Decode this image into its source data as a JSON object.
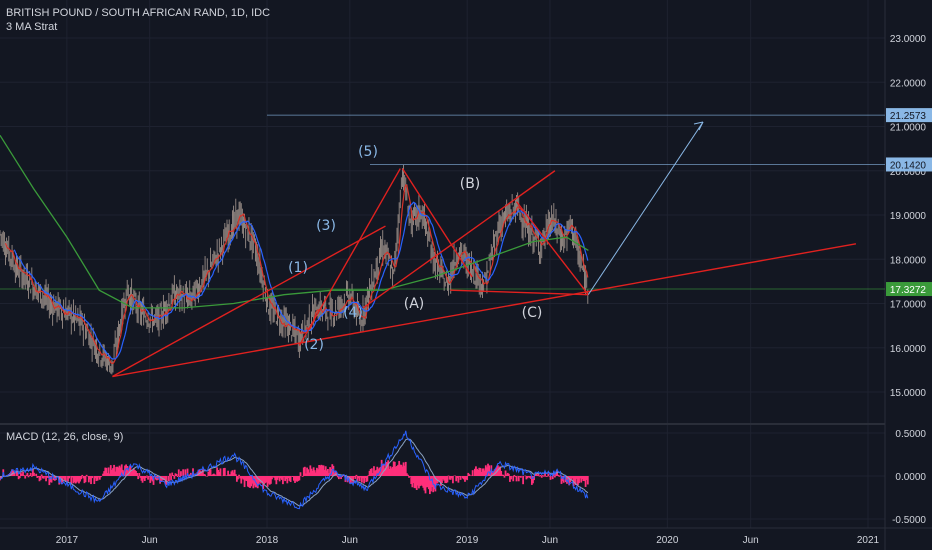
{
  "header": {
    "symbol": "BRITISH POUND / SOUTH AFRICAN RAND, 1D, IDC",
    "indicator": "3 MA Strat"
  },
  "macd_label": "MACD (12, 26, close, 9)",
  "colors": {
    "background": "#131722",
    "grid": "#1e2230",
    "trendline": "#e0211f",
    "projection": "#8ab8e6",
    "price": "#9a8e88",
    "ma_fast": "#d8342a",
    "ma_mid": "#2962ff",
    "ma_slow": "#3a9a3a",
    "macd_hist": "#ff2f7a",
    "macd_line": "#2962ff",
    "signal_line": "#8aa2c2"
  },
  "chart_data": [
    {
      "type": "line",
      "title": "BRITISH POUND / SOUTH AFRICAN RAND, 1D, IDC",
      "y_ticks": [
        "15.0000",
        "16.0000",
        "17.0000",
        "18.0000",
        "19.0000",
        "20.0000",
        "21.0000",
        "22.0000",
        "23.0000"
      ],
      "ylim": [
        14.4,
        23.7
      ],
      "x_ticks": [
        "2017",
        "Jun",
        "2018",
        "Jun",
        "2019",
        "Jun",
        "2020",
        "Jun",
        "2021"
      ],
      "price_labels": [
        "21.2573",
        "20.1420",
        "17.3272"
      ],
      "x_start": "2016-09",
      "x_end": "2021-02",
      "series": [
        {
          "values": [
            {
              "x": "2016-09-01",
              "y": 18.6
            },
            {
              "x": "2016-10-01",
              "y": 17.8
            },
            {
              "x": "2016-11-01",
              "y": 17.4
            },
            {
              "x": "2016-12-01",
              "y": 17.0
            },
            {
              "x": "2017-01-01",
              "y": 16.8
            },
            {
              "x": "2017-02-01",
              "y": 16.5
            },
            {
              "x": "2017-03-01",
              "y": 15.9
            },
            {
              "x": "2017-03-25",
              "y": 15.6
            },
            {
              "x": "2017-04-20",
              "y": 17.3
            },
            {
              "x": "2017-05-15",
              "y": 16.8
            },
            {
              "x": "2017-06-15",
              "y": 16.6
            },
            {
              "x": "2017-07-15",
              "y": 17.2
            },
            {
              "x": "2017-08-15",
              "y": 17.1
            },
            {
              "x": "2017-09-15",
              "y": 17.7
            },
            {
              "x": "2017-10-15",
              "y": 18.4
            },
            {
              "x": "2017-11-10",
              "y": 19.0
            },
            {
              "x": "2017-12-10",
              "y": 18.3
            },
            {
              "x": "2018-01-05",
              "y": 16.9
            },
            {
              "x": "2018-02-01",
              "y": 16.6
            },
            {
              "x": "2018-03-01",
              "y": 16.2
            },
            {
              "x": "2018-04-01",
              "y": 16.9
            },
            {
              "x": "2018-05-01",
              "y": 16.8
            },
            {
              "x": "2018-06-01",
              "y": 17.2
            },
            {
              "x": "2018-06-20",
              "y": 16.6
            },
            {
              "x": "2018-07-15",
              "y": 17.6
            },
            {
              "x": "2018-08-01",
              "y": 18.3
            },
            {
              "x": "2018-08-20",
              "y": 17.6
            },
            {
              "x": "2018-09-05",
              "y": 20.0
            },
            {
              "x": "2018-09-20",
              "y": 18.8
            },
            {
              "x": "2018-10-10",
              "y": 19.1
            },
            {
              "x": "2018-11-01",
              "y": 18.0
            },
            {
              "x": "2018-11-25",
              "y": 17.4
            },
            {
              "x": "2018-12-15",
              "y": 18.2
            },
            {
              "x": "2019-01-10",
              "y": 17.8
            },
            {
              "x": "2019-02-01",
              "y": 17.4
            },
            {
              "x": "2019-03-01",
              "y": 18.8
            },
            {
              "x": "2019-04-01",
              "y": 19.2
            },
            {
              "x": "2019-04-25",
              "y": 18.6
            },
            {
              "x": "2019-05-15",
              "y": 18.3
            },
            {
              "x": "2019-06-05",
              "y": 18.9
            },
            {
              "x": "2019-06-25",
              "y": 18.4
            },
            {
              "x": "2019-07-10",
              "y": 18.8
            },
            {
              "x": "2019-07-25",
              "y": 18.0
            },
            {
              "x": "2019-08-10",
              "y": 17.3
            }
          ]
        },
        {
          "values": [
            {
              "x": "2016-09-01",
              "y": 20.8
            },
            {
              "x": "2016-11-01",
              "y": 19.6
            },
            {
              "x": "2017-01-01",
              "y": 18.5
            },
            {
              "x": "2017-03-01",
              "y": 17.3
            },
            {
              "x": "2017-05-01",
              "y": 16.9
            },
            {
              "x": "2017-08-01",
              "y": 16.9
            },
            {
              "x": "2017-11-01",
              "y": 17.0
            },
            {
              "x": "2018-02-01",
              "y": 17.2
            },
            {
              "x": "2018-05-01",
              "y": 17.3
            },
            {
              "x": "2018-08-01",
              "y": 17.3
            },
            {
              "x": "2018-11-01",
              "y": 17.6
            },
            {
              "x": "2019-02-01",
              "y": 18.0
            },
            {
              "x": "2019-05-01",
              "y": 18.4
            },
            {
              "x": "2019-07-01",
              "y": 18.5
            },
            {
              "x": "2019-08-10",
              "y": 18.2
            }
          ]
        }
      ]
    },
    {
      "type": "line",
      "title": "MACD (12, 26, close, 9)",
      "y_ticks": [
        "0.5000",
        "0.0000",
        "-0.5000"
      ],
      "ylim": [
        -0.6,
        0.6
      ],
      "series": [
        {
          "values": [
            {
              "x": "2016-09-01",
              "y": 0.0
            },
            {
              "x": "2016-11-01",
              "y": 0.1
            },
            {
              "x": "2017-01-01",
              "y": -0.1
            },
            {
              "x": "2017-03-01",
              "y": -0.3
            },
            {
              "x": "2017-05-01",
              "y": 0.15
            },
            {
              "x": "2017-07-01",
              "y": -0.1
            },
            {
              "x": "2017-09-01",
              "y": 0.05
            },
            {
              "x": "2017-11-01",
              "y": 0.25
            },
            {
              "x": "2018-01-01",
              "y": -0.2
            },
            {
              "x": "2018-03-01",
              "y": -0.35
            },
            {
              "x": "2018-05-01",
              "y": 0.05
            },
            {
              "x": "2018-07-01",
              "y": -0.15
            },
            {
              "x": "2018-09-10",
              "y": 0.5
            },
            {
              "x": "2018-11-01",
              "y": -0.1
            },
            {
              "x": "2019-01-01",
              "y": -0.25
            },
            {
              "x": "2019-03-01",
              "y": 0.15
            },
            {
              "x": "2019-05-01",
              "y": 0.0
            },
            {
              "x": "2019-06-15",
              "y": 0.05
            },
            {
              "x": "2019-08-10",
              "y": -0.25
            }
          ]
        }
      ]
    }
  ]
}
